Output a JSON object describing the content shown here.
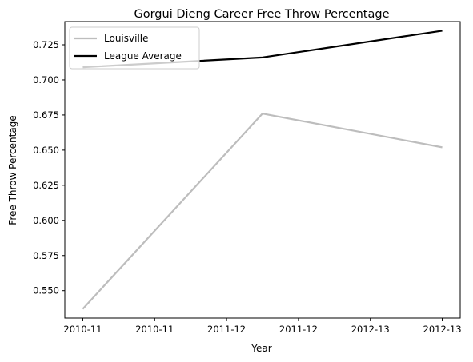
{
  "chart_data": {
    "type": "line",
    "title": "Gorgui Dieng Career Free Throw Percentage",
    "xlabel": "Year",
    "ylabel": "Free Throw Percentage",
    "x_tick_labels": [
      "2010-11",
      "2010-11",
      "2011-12",
      "2011-12",
      "2012-13",
      "2012-13"
    ],
    "categories": [
      "2010-11",
      "2011-12",
      "2012-13"
    ],
    "series": [
      {
        "name": "Louisville",
        "values": [
          0.537,
          0.676,
          0.652
        ],
        "color": "#bdbdbd"
      },
      {
        "name": "League Average",
        "values": [
          0.709,
          0.716,
          0.735
        ],
        "color": "#000000"
      }
    ],
    "y_ticks": [
      0.55,
      0.575,
      0.6,
      0.625,
      0.65,
      0.675,
      0.7,
      0.725
    ],
    "y_tick_labels": [
      "0.550",
      "0.575",
      "0.600",
      "0.625",
      "0.650",
      "0.675",
      "0.700",
      "0.725"
    ],
    "ylim": [
      0.5305,
      0.7415
    ],
    "xlim": [
      -0.1,
      2.1
    ],
    "grid": false,
    "legend_position": "upper-left"
  }
}
